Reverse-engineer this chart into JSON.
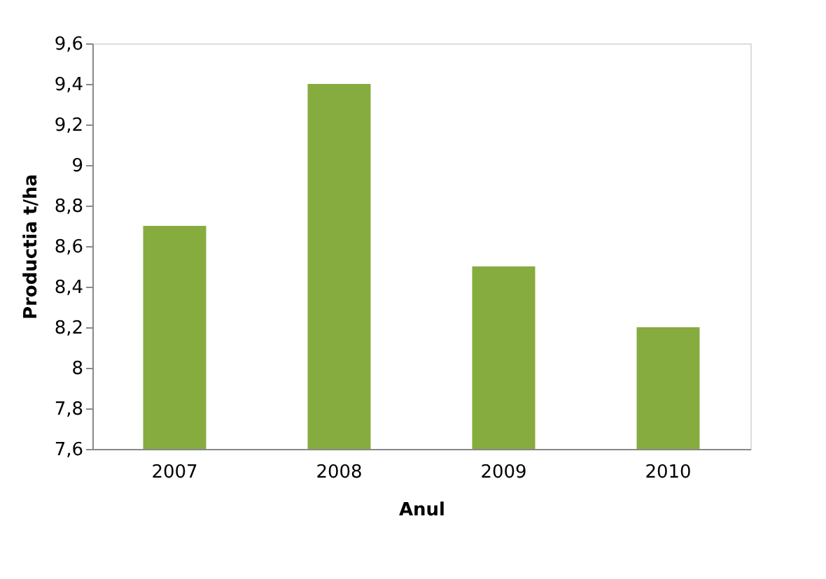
{
  "chart_data": {
    "type": "bar",
    "xlabel": "Anul",
    "ylabel": "Productia t/ha",
    "categories": [
      "2007",
      "2008",
      "2009",
      "2010"
    ],
    "values": [
      8.7,
      9.4,
      8.5,
      8.2
    ],
    "color": "#86ac3f",
    "ylim": [
      7.6,
      9.6
    ],
    "yticks": [
      {
        "value": 7.6,
        "label": "7,6"
      },
      {
        "value": 7.8,
        "label": "7,8"
      },
      {
        "value": 8,
        "label": "8"
      },
      {
        "value": 8.2,
        "label": "8,2"
      },
      {
        "value": 8.4,
        "label": "8,4"
      },
      {
        "value": 8.6,
        "label": "8,6"
      },
      {
        "value": 8.8,
        "label": "8,8"
      },
      {
        "value": 9,
        "label": "9"
      },
      {
        "value": 9.2,
        "label": "9,2"
      },
      {
        "value": 9.4,
        "label": "9,4"
      },
      {
        "value": 9.6,
        "label": "9,6"
      }
    ],
    "grid": false
  }
}
